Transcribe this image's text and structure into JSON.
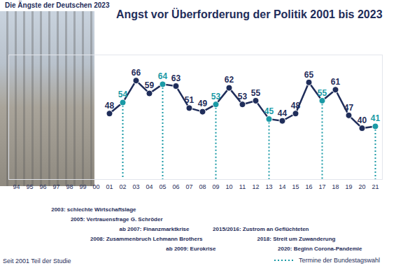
{
  "chart_data": {
    "type": "line",
    "header": "Die Ängste der Deutschen 2023",
    "title": "Angst vor Überforderung der Politik 2001 bis 2023",
    "categories": [
      "94",
      "95",
      "96",
      "97",
      "98",
      "99",
      "00",
      "01",
      "02",
      "03",
      "04",
      "05",
      "06",
      "07",
      "08",
      "09",
      "10",
      "11",
      "12",
      "13",
      "14",
      "15",
      "16",
      "17",
      "18",
      "19",
      "20",
      "21"
    ],
    "values": [
      null,
      null,
      null,
      null,
      null,
      null,
      null,
      48,
      54,
      66,
      59,
      64,
      63,
      51,
      49,
      53,
      62,
      53,
      55,
      45,
      44,
      48,
      65,
      55,
      61,
      47,
      40,
      41
    ],
    "color": "#1f2d5a",
    "colors": [
      "#1f2d5a",
      "#1f2d5a",
      "#1f2d5a",
      "#1f2d5a",
      "#1f2d5a",
      "#1f2d5a",
      "#1f2d5a",
      "#1f2d5a",
      "#1a9aa6",
      "#1f2d5a",
      "#1f2d5a",
      "#1a9aa6",
      "#1f2d5a",
      "#1f2d5a",
      "#1f2d5a",
      "#1a9aa6",
      "#1f2d5a",
      "#1f2d5a",
      "#1f2d5a",
      "#1a9aa6",
      "#1f2d5a",
      "#1f2d5a",
      "#1f2d5a",
      "#1a9aa6",
      "#1f2d5a",
      "#1f2d5a",
      "#1f2d5a",
      "#1a9aa6"
    ],
    "marker": "circle",
    "line_style": "solid",
    "data_labels": true,
    "tick_labels": "x",
    "grid": false,
    "ylim": [
      12,
      80
    ],
    "yticks": [],
    "annotations": [
      {
        "x": "03",
        "text": "2003: schlechte Wirtschaftslage"
      },
      {
        "x": "05",
        "text": "2005: Vertrauensfrage G. Schröder"
      },
      {
        "x": "07",
        "text": "ab 2007: Finanzmarktkrise"
      },
      {
        "x": "08",
        "text": "2008: Zusammenbruch Lehmann Brothers"
      },
      {
        "x": "09",
        "text": "ab 2009: Eurokrise"
      },
      {
        "x": "16",
        "text": "2015/2016: Zustrom an Geflüchteten"
      },
      {
        "x": "18",
        "text": "2018: Streit um Zuwanderung"
      },
      {
        "x": "20",
        "text": "2020: Beginn Corona-Pandemie"
      }
    ],
    "legend_label": "Termine der Bundestagswahl",
    "footnote": "Seit 2001 Teil der Studie"
  }
}
